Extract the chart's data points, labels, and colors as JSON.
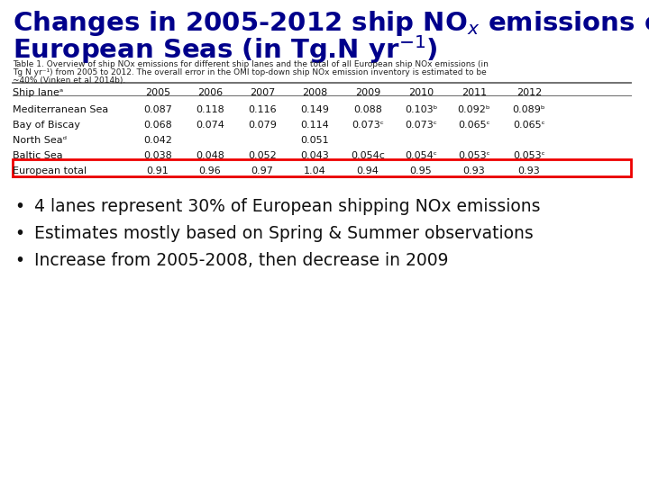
{
  "title_color": "#00008B",
  "bg_color": "#ffffff",
  "cap_line1": "Table 1. Overview of ship NOx emissions for different ship lanes and the total of all European ship NOx emissions (in",
  "cap_line2": "Tg N yr⁻¹) from 2005 to 2012. The overall error in the OMI top-down ship NOx emission inventory is estimated to be",
  "cap_line3": "~40% (Vinken et al 2014b).",
  "col_headers": [
    "Ship laneᵃ",
    "2005",
    "2006",
    "2007",
    "2008",
    "2009",
    "2010",
    "2011",
    "2012"
  ],
  "rows": [
    [
      "Mediterranean Sea",
      "0.087",
      "0.118",
      "0.116",
      "0.149",
      "0.088",
      "0.103ᵇ",
      "0.092ᵇ",
      "0.089ᵇ"
    ],
    [
      "Bay of Biscay",
      "0.068",
      "0.074",
      "0.079",
      "0.114",
      "0.073ᶜ",
      "0.073ᶜ",
      "0.065ᶜ",
      "0.065ᶜ"
    ],
    [
      "North Seaᵈ",
      "0.042",
      "",
      "",
      "0.051",
      "",
      "",
      "",
      ""
    ],
    [
      "Baltic Sea",
      "0.038",
      "0.048",
      "0.052",
      "0.043",
      "0.054c",
      "0.054ᶜ",
      "0.053ᶜ",
      "0.053ᶜ"
    ]
  ],
  "total_row": [
    "European total",
    "0.91",
    "0.96",
    "0.97",
    "1.04",
    "0.94",
    "0.95",
    "0.93",
    "0.93"
  ],
  "bullet_points": [
    "4 lanes represent 30% of European shipping NOx emissions",
    "Estimates mostly based on Spring & Summer observations",
    "Increase from 2005-2008, then decrease in 2009"
  ],
  "title_fontsize": 21,
  "caption_fontsize": 6.5,
  "table_fontsize": 8.0,
  "bullet_fontsize": 13.5
}
